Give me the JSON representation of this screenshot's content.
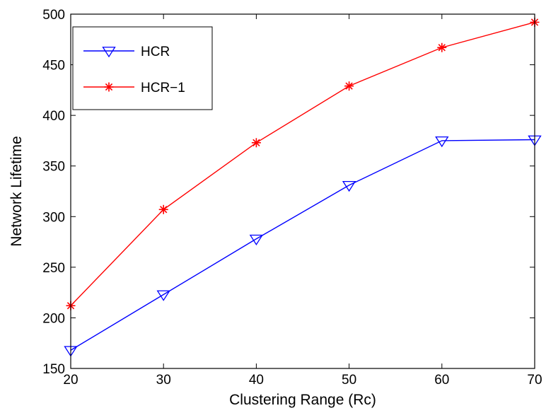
{
  "chart_data": {
    "type": "line",
    "title": "",
    "xlabel": "Clustering Range (Rc)",
    "ylabel": "Network Lifetime",
    "x": [
      20,
      30,
      40,
      50,
      60,
      70
    ],
    "xlim": [
      20,
      70
    ],
    "ylim": [
      150,
      500
    ],
    "xticks": [
      "20",
      "30",
      "40",
      "50",
      "60",
      "70"
    ],
    "yticks": [
      "150",
      "200",
      "250",
      "300",
      "350",
      "400",
      "450",
      "500"
    ],
    "grid": false,
    "legend_position": "top-left",
    "series": [
      {
        "name": "HCR",
        "color": "#0000ff",
        "marker": "triangle-down",
        "values": [
          168,
          223,
          278,
          331,
          375,
          376
        ]
      },
      {
        "name": "HCR−1",
        "color": "#ff0000",
        "marker": "asterisk",
        "values": [
          212,
          307,
          373,
          429,
          467,
          492
        ]
      }
    ]
  }
}
